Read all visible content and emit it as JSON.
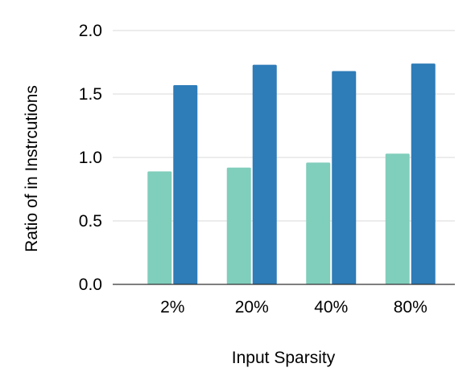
{
  "chart_data": {
    "type": "bar",
    "title": "",
    "xlabel": "Input Sparsity",
    "ylabel": "Ratio of in Instrcutions",
    "categories": [
      "2%",
      "20%",
      "40%",
      "80%"
    ],
    "series": [
      {
        "values": [
          0.89,
          0.92,
          0.96,
          1.03
        ],
        "color": "#80cebc"
      },
      {
        "values": [
          1.57,
          1.73,
          1.68,
          1.74
        ],
        "color": "#2e7cb8"
      }
    ],
    "ylim": [
      0,
      2.0
    ],
    "yticks": [
      "0.0",
      "0.5",
      "1.0",
      "1.5",
      "2.0"
    ],
    "ytick_values": [
      0,
      0.5,
      1.0,
      1.5,
      2.0
    ],
    "grid": true,
    "legend": "none"
  }
}
